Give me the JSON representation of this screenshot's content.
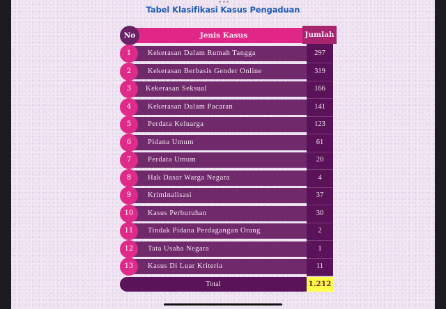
{
  "page": {
    "title": "Tabel Klasifikasi Kasus Pengaduan"
  },
  "table": {
    "headers": {
      "no": "No",
      "jenis_kasus": "Jenis Kasus",
      "jumlah": "Jumlah"
    },
    "rows": [
      {
        "no": "1",
        "jenis_kasus": "Kekerasan Dalam Rumah Tangga",
        "jumlah": "297"
      },
      {
        "no": "2",
        "jenis_kasus": "Kekerasan Berbasis Gender Online",
        "jumlah": "319"
      },
      {
        "no": "3",
        "jenis_kasus": "Kekerasan Seksual",
        "jumlah": "166"
      },
      {
        "no": "4",
        "jenis_kasus": "Kekerasan Dalam Pacaran",
        "jumlah": "141"
      },
      {
        "no": "5",
        "jenis_kasus": "Perdata Keluarga",
        "jumlah": "123"
      },
      {
        "no": "6",
        "jenis_kasus": "Pidana Umum",
        "jumlah": "61"
      },
      {
        "no": "7",
        "jenis_kasus": "Perdata Umum",
        "jumlah": "20"
      },
      {
        "no": "8",
        "jenis_kasus": "Hak Dasar Warga Negara",
        "jumlah": "4"
      },
      {
        "no": "9",
        "jenis_kasus": "Kriminalisasi",
        "jumlah": "37"
      },
      {
        "no": "10",
        "jenis_kasus": "Kasus Perburuhan",
        "jumlah": "30"
      },
      {
        "no": "11",
        "jenis_kasus": "Tindak Pidana Perdagangan Orang",
        "jumlah": "2"
      },
      {
        "no": "12",
        "jenis_kasus": "Tata Usaha Negara",
        "jumlah": "1"
      },
      {
        "no": "13",
        "jenis_kasus": "Kasus Di Luar Kriteria",
        "jumlah": "11"
      }
    ],
    "total": {
      "label": "Total",
      "value": "1.212"
    }
  },
  "colors": {
    "title": "#1f5bb0",
    "header_pink": "#e02787",
    "header_no_circle": "#6a2265",
    "header_jumlah": "#a8246f",
    "row_bar": "#702a6c",
    "row_circle": "#e02a8a",
    "value_column": "#5a1259",
    "total_highlight": "#ffff4a",
    "background": "#f1e8f3"
  }
}
